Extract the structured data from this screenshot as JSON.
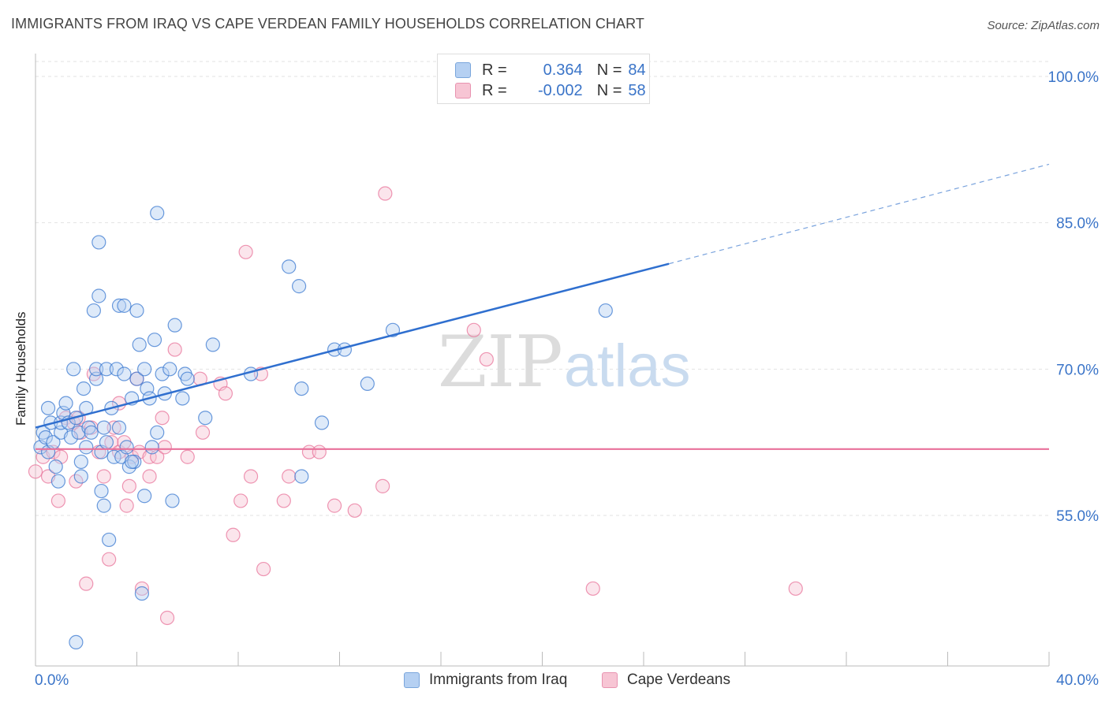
{
  "title": "IMMIGRANTS FROM IRAQ VS CAPE VERDEAN FAMILY HOUSEHOLDS CORRELATION CHART",
  "source": "Source: ZipAtlas.com",
  "watermark": {
    "zip": "ZIP",
    "atlas": "atlas"
  },
  "legend": {
    "rows": [
      {
        "r_label": "R =",
        "r_value": "0.364",
        "n_label": "N =",
        "n_value": "84",
        "color": "#a8c8f0"
      },
      {
        "r_label": "R =",
        "r_value": "-0.002",
        "n_label": "N =",
        "n_value": "58",
        "color": "#f5b8cb"
      }
    ]
  },
  "bottom_legend": {
    "series1": "Immigrants from Iraq",
    "series2": "Cape Verdeans"
  },
  "chart_data": {
    "type": "scatter",
    "xlabel": "",
    "ylabel": "Family Households",
    "x_range": [
      0,
      40
    ],
    "y_range": [
      40,
      102
    ],
    "x_tick_labels": [
      "0.0%",
      "40.0%"
    ],
    "y_tick_labels": [
      "100.0%",
      "85.0%",
      "70.0%",
      "55.0%"
    ],
    "y_ticks": [
      100,
      85,
      70,
      55
    ],
    "grid": true,
    "series": [
      {
        "name": "Immigrants from Iraq",
        "color": "#3a78d0",
        "fill": "#b5d0f2",
        "trend": {
          "x0": 0,
          "y0": 64.0,
          "x1": 25,
          "y1": 80.8,
          "dash_to_x": 40,
          "dash_to_y": 91.0
        },
        "points": [
          [
            0.2,
            62.0
          ],
          [
            0.3,
            63.5
          ],
          [
            0.4,
            63.0
          ],
          [
            0.5,
            61.5
          ],
          [
            0.5,
            66.0
          ],
          [
            0.6,
            64.5
          ],
          [
            0.7,
            62.5
          ],
          [
            0.8,
            60.0
          ],
          [
            0.9,
            58.5
          ],
          [
            1.0,
            63.5
          ],
          [
            1.0,
            64.5
          ],
          [
            1.1,
            65.5
          ],
          [
            1.2,
            66.5
          ],
          [
            1.3,
            64.5
          ],
          [
            1.4,
            63.0
          ],
          [
            1.5,
            70.0
          ],
          [
            1.6,
            65.0
          ],
          [
            1.7,
            63.5
          ],
          [
            1.8,
            60.5
          ],
          [
            1.8,
            59.0
          ],
          [
            1.9,
            68.0
          ],
          [
            2.0,
            62.0
          ],
          [
            2.0,
            66.0
          ],
          [
            2.1,
            64.0
          ],
          [
            2.2,
            63.5
          ],
          [
            2.3,
            76.0
          ],
          [
            2.4,
            69.0
          ],
          [
            2.4,
            70.0
          ],
          [
            2.5,
            77.5
          ],
          [
            2.5,
            83.0
          ],
          [
            2.6,
            61.5
          ],
          [
            2.6,
            57.5
          ],
          [
            2.7,
            56.0
          ],
          [
            2.7,
            64.0
          ],
          [
            2.8,
            70.0
          ],
          [
            2.8,
            62.5
          ],
          [
            2.9,
            52.5
          ],
          [
            3.0,
            66.0
          ],
          [
            3.1,
            61.0
          ],
          [
            3.2,
            70.0
          ],
          [
            3.3,
            76.5
          ],
          [
            3.3,
            64.0
          ],
          [
            3.4,
            61.0
          ],
          [
            3.5,
            76.5
          ],
          [
            3.5,
            69.5
          ],
          [
            3.6,
            62.0
          ],
          [
            3.7,
            60.0
          ],
          [
            3.8,
            67.0
          ],
          [
            3.9,
            60.5
          ],
          [
            4.0,
            76.0
          ],
          [
            4.0,
            69.0
          ],
          [
            4.1,
            72.5
          ],
          [
            4.2,
            47.0
          ],
          [
            4.3,
            70.0
          ],
          [
            4.3,
            57.0
          ],
          [
            4.4,
            68.0
          ],
          [
            4.5,
            67.0
          ],
          [
            4.6,
            62.0
          ],
          [
            4.7,
            73.0
          ],
          [
            4.8,
            63.5
          ],
          [
            4.8,
            86.0
          ],
          [
            5.0,
            69.5
          ],
          [
            5.1,
            67.5
          ],
          [
            5.3,
            70.0
          ],
          [
            5.4,
            56.5
          ],
          [
            5.5,
            74.5
          ],
          [
            5.8,
            67.0
          ],
          [
            5.9,
            69.5
          ],
          [
            6.0,
            69.0
          ],
          [
            6.7,
            65.0
          ],
          [
            7.0,
            72.5
          ],
          [
            8.5,
            69.5
          ],
          [
            10.0,
            80.5
          ],
          [
            10.4,
            78.5
          ],
          [
            10.5,
            68.0
          ],
          [
            10.5,
            59.0
          ],
          [
            11.3,
            64.5
          ],
          [
            11.8,
            72.0
          ],
          [
            12.2,
            72.0
          ],
          [
            13.1,
            68.5
          ],
          [
            14.1,
            74.0
          ],
          [
            22.5,
            76.0
          ],
          [
            1.6,
            42.0
          ],
          [
            3.8,
            60.5
          ]
        ]
      },
      {
        "name": "Cape Verdeans",
        "color": "#e8739a",
        "fill": "#f7c5d4",
        "trend": {
          "x0": 0,
          "y0": 61.8,
          "x1": 40,
          "y1": 61.8
        },
        "points": [
          [
            0.0,
            59.5
          ],
          [
            0.3,
            61.0
          ],
          [
            0.5,
            59.0
          ],
          [
            0.7,
            61.5
          ],
          [
            0.9,
            56.5
          ],
          [
            1.0,
            61.0
          ],
          [
            1.2,
            65.0
          ],
          [
            1.5,
            64.5
          ],
          [
            1.6,
            58.5
          ],
          [
            1.7,
            65.0
          ],
          [
            1.8,
            63.5
          ],
          [
            2.0,
            48.0
          ],
          [
            2.2,
            64.0
          ],
          [
            2.3,
            69.5
          ],
          [
            2.5,
            61.5
          ],
          [
            2.7,
            59.0
          ],
          [
            2.9,
            50.5
          ],
          [
            3.0,
            62.5
          ],
          [
            3.1,
            64.0
          ],
          [
            3.3,
            61.5
          ],
          [
            3.3,
            66.5
          ],
          [
            3.5,
            62.5
          ],
          [
            3.6,
            56.0
          ],
          [
            3.7,
            58.0
          ],
          [
            3.8,
            61.0
          ],
          [
            4.0,
            69.0
          ],
          [
            4.1,
            61.5
          ],
          [
            4.2,
            47.5
          ],
          [
            4.5,
            61.0
          ],
          [
            4.5,
            59.0
          ],
          [
            4.8,
            61.0
          ],
          [
            5.0,
            65.0
          ],
          [
            5.1,
            62.0
          ],
          [
            5.2,
            44.5
          ],
          [
            5.5,
            72.0
          ],
          [
            6.0,
            61.0
          ],
          [
            6.5,
            69.0
          ],
          [
            6.6,
            63.5
          ],
          [
            7.3,
            68.5
          ],
          [
            7.5,
            67.5
          ],
          [
            7.8,
            53.0
          ],
          [
            8.1,
            56.5
          ],
          [
            8.3,
            82.0
          ],
          [
            8.5,
            59.0
          ],
          [
            8.9,
            69.5
          ],
          [
            9.0,
            49.5
          ],
          [
            9.8,
            56.5
          ],
          [
            10.0,
            59.0
          ],
          [
            10.8,
            61.5
          ],
          [
            11.2,
            61.5
          ],
          [
            11.8,
            56.0
          ],
          [
            12.6,
            55.5
          ],
          [
            13.7,
            58.0
          ],
          [
            13.8,
            88.0
          ],
          [
            17.3,
            74.0
          ],
          [
            17.8,
            71.0
          ],
          [
            22.0,
            47.5
          ],
          [
            30.0,
            47.5
          ]
        ]
      }
    ]
  }
}
